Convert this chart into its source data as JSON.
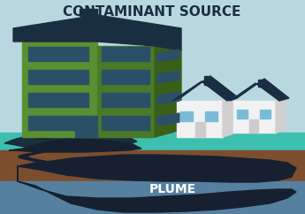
{
  "bg_sky": "#b8d8e0",
  "bg_ground_surface": "#3dbfb0",
  "bg_soil": "#7d4e2e",
  "bg_groundwater": "#5580a0",
  "plume_color": "#162030",
  "spill_color": "#162030",
  "building_front_light": "#5a8f32",
  "building_front_mid": "#4a7a28",
  "building_side": "#3a6018",
  "building_roof_top": "#1a2e42",
  "building_roof_peak": "#1a2e42",
  "building_windows": "#2a5068",
  "building_door": "#2a5068",
  "house_wall": "#f2f2f2",
  "house_wall_side": "#d0d0d0",
  "house_roof": "#1a2e42",
  "house_chimney": "#1a2e42",
  "house_window": "#7abcd8",
  "house_door": "#cccccc",
  "title_text": "CONTAMINANT SOURCE",
  "plume_text": "PLUME",
  "title_color": "#1a2e42",
  "plume_text_color": "#ffffff",
  "title_fontsize": 11,
  "plume_fontsize": 10
}
